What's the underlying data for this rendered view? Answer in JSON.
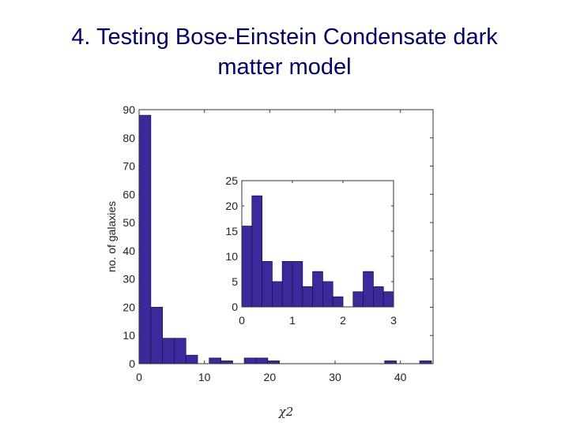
{
  "slide": {
    "title_line1": "4. Testing Bose-Einstein Condensate dark",
    "title_line2": "matter model"
  },
  "colors": {
    "bar": "#3a2a9c",
    "bar_edge": "#1a1450",
    "title": "#000066",
    "axis": "#333333"
  },
  "chart_data": [
    {
      "type": "bar",
      "title": "",
      "xlabel": "χ2",
      "ylabel": "no. of galaxies",
      "xlim": [
        0,
        45
      ],
      "ylim": [
        0,
        90
      ],
      "xticks": [
        0,
        10,
        20,
        30,
        40
      ],
      "yticks": [
        0,
        10,
        20,
        30,
        40,
        50,
        60,
        70,
        80,
        90
      ],
      "bin_width": 1.79,
      "bin_starts": [
        0,
        1.79,
        3.58,
        5.37,
        7.16,
        8.95,
        10.74,
        12.53,
        14.32,
        16.11,
        17.9,
        19.69,
        21.48,
        23.27,
        25.06,
        26.85,
        28.64,
        30.43,
        32.22,
        34.01,
        35.8,
        37.59,
        39.38,
        41.17,
        42.96
      ],
      "values": [
        88,
        20,
        9,
        9,
        3,
        0,
        2,
        1,
        0,
        2,
        2,
        1,
        0,
        0,
        0,
        0,
        0,
        0,
        0,
        0,
        0,
        1,
        0,
        0,
        1
      ],
      "grid": false
    },
    {
      "type": "bar",
      "title": "inset",
      "xlabel": "",
      "ylabel": "",
      "xlim": [
        0,
        3
      ],
      "ylim": [
        0,
        25
      ],
      "xticks": [
        0,
        1,
        2,
        3
      ],
      "yticks": [
        0,
        5,
        10,
        15,
        20,
        25
      ],
      "bin_width": 0.2,
      "bin_starts": [
        0,
        0.2,
        0.4,
        0.6,
        0.8,
        1.0,
        1.2,
        1.4,
        1.6,
        1.8,
        2.0,
        2.2,
        2.4,
        2.6,
        2.8
      ],
      "values": [
        16,
        22,
        9,
        5,
        9,
        9,
        4,
        7,
        5,
        2,
        0,
        3,
        7,
        4,
        3
      ],
      "grid": false
    }
  ]
}
